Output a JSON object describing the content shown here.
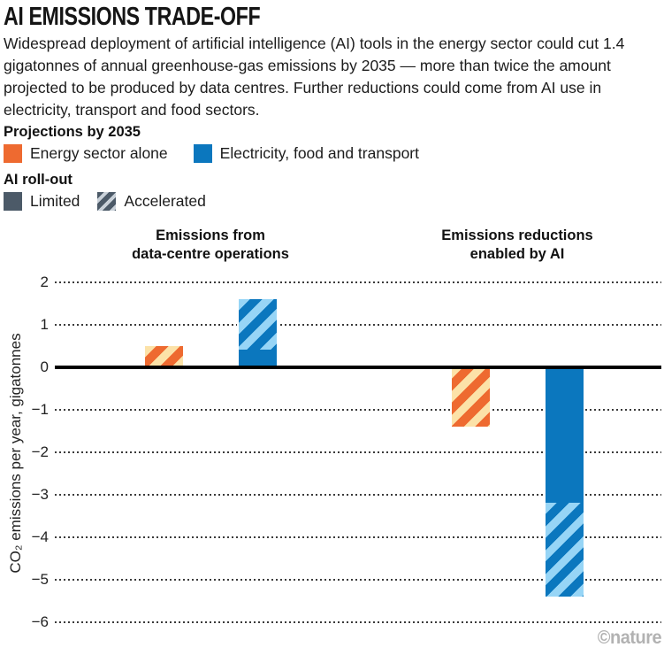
{
  "header": {
    "title": "AI EMISSIONS TRADE-OFF",
    "subtitle": "Widespread deployment of artificial intelligence (AI) tools in the energy sector could cut 1.4 gigatonnes of annual greenhouse-gas emissions by 2035 — more than twice the amount projected to be produced by data centres. Further reductions could come from AI use in electricity, transport and food sectors."
  },
  "legend": {
    "projections_title": "Projections by 2035",
    "projections": [
      {
        "label": "Energy sector alone",
        "swatch": "solid-orange"
      },
      {
        "label": "Electricity, food and transport",
        "swatch": "solid-blue"
      }
    ],
    "rollout_title": "AI roll-out",
    "rollout": [
      {
        "label": "Limited",
        "swatch": "solid-slate"
      },
      {
        "label": "Accelerated",
        "swatch": "hatched-slate"
      }
    ]
  },
  "chart_data": {
    "type": "bar",
    "ylabel": "CO₂ emissions per year, gigatonnes",
    "ylim": [
      -6,
      2
    ],
    "yticks": [
      2,
      1,
      0,
      -1,
      -2,
      -3,
      -4,
      -5,
      -6
    ],
    "ytick_labels": [
      "2",
      "1",
      "0",
      "−1",
      "−2",
      "−3",
      "−4",
      "−5",
      "−6"
    ],
    "grid": "dotted-horizontal",
    "legend_position": "top-left",
    "groups": [
      {
        "title_lines": [
          "Emissions from",
          "data-centre operations"
        ],
        "bars": [
          {
            "series": "Energy sector alone",
            "rollout_limited": null,
            "rollout_accelerated": 0.5,
            "style": "fully hatched"
          },
          {
            "series": "Electricity, food and transport",
            "rollout_limited": 0.4,
            "rollout_accelerated": 1.6,
            "style": "solid base, hatched extension"
          }
        ]
      },
      {
        "title_lines": [
          "Emissions reductions",
          "enabled by AI"
        ],
        "bars": [
          {
            "series": "Energy sector alone",
            "rollout_limited": null,
            "rollout_accelerated": -1.4,
            "style": "fully hatched"
          },
          {
            "series": "Electricity, food and transport",
            "rollout_limited": -3.2,
            "rollout_accelerated": -5.4,
            "style": "solid base, hatched extension"
          }
        ]
      }
    ],
    "colors": {
      "orange": "#ee6a30",
      "orange_hatch_bg": "#fce2a8",
      "blue": "#0b77be",
      "blue_hatch_bg": "#97d5f6",
      "slate": "#4c5a68",
      "slate_hatch_bg": "#c9d1d9",
      "grid": "#3a3a3a",
      "axis": "#000000"
    }
  },
  "footer": {
    "credit": "©nature"
  }
}
